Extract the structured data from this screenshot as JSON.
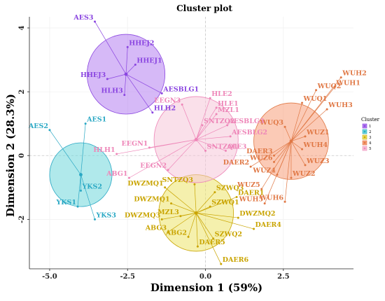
{
  "chart_data": {
    "type": "scatter",
    "title": "Cluster plot",
    "xlabel": "Dimension 1 (59%)",
    "ylabel": "Dimension 2 (28.3%)",
    "xlim": [
      -5.65,
      4.75
    ],
    "ylim": [
      -3.55,
      4.35
    ],
    "x_ticks": [
      "-5.0",
      "-2.5",
      "0.0",
      "2.5"
    ],
    "x_tick_values": [
      -5.0,
      -2.5,
      0.0,
      2.5
    ],
    "y_ticks": [
      "-2",
      "0",
      "2",
      "4"
    ],
    "y_tick_values": [
      -2,
      0,
      2,
      4
    ],
    "grid": true,
    "legend": {
      "title": "Cluster",
      "placement": "right",
      "entries": [
        "1",
        "2",
        "3",
        "4",
        "5"
      ]
    },
    "clusters": [
      {
        "name": "1",
        "color": "#8a45e0",
        "fill": "#b57ff0",
        "center": [
          -2.55,
          2.55
        ],
        "radius": 1.25,
        "points": [
          {
            "label": "AES3",
            "x": -3.55,
            "y": 4.2
          },
          {
            "label": "HHEJ2",
            "x": -2.5,
            "y": 3.4
          },
          {
            "label": "HHEJ1",
            "x": -2.25,
            "y": 2.85
          },
          {
            "label": "HHEJ3",
            "x": -3.15,
            "y": 2.4
          },
          {
            "label": "HLH3",
            "x": -2.6,
            "y": 1.9
          },
          {
            "label": "HLH2",
            "x": -1.7,
            "y": 1.35
          },
          {
            "label": "AESBLG1",
            "x": -1.4,
            "y": 1.95
          }
        ]
      },
      {
        "name": "2",
        "color": "#2aa8c4",
        "fill": "#6fd7da",
        "center": [
          -4.0,
          -0.6
        ],
        "radius": 1.0,
        "points": [
          {
            "label": "AES2",
            "x": -5.0,
            "y": 0.8
          },
          {
            "label": "AES1",
            "x": -3.85,
            "y": 1.0
          },
          {
            "label": "YKS2",
            "x": -4.0,
            "y": -1.1
          },
          {
            "label": "YKS1",
            "x": -4.1,
            "y": -1.6
          },
          {
            "label": "YKS3",
            "x": -3.55,
            "y": -2.0
          }
        ]
      },
      {
        "name": "3",
        "color": "#c9a400",
        "fill": "#ece36a",
        "center": [
          -0.3,
          -1.8
        ],
        "radius": 1.2,
        "points": [
          {
            "label": "SNTZQ3",
            "x": -0.35,
            "y": -0.9
          },
          {
            "label": "DWZMQ1",
            "x": -1.3,
            "y": -1.0
          },
          {
            "label": "SZWQ3",
            "x": 0.3,
            "y": -1.15
          },
          {
            "label": "DAER1",
            "x": 1.0,
            "y": -1.3
          },
          {
            "label": "DWZMQ1",
            "x": -1.1,
            "y": -1.5
          },
          {
            "label": "SZWQ1",
            "x": 0.15,
            "y": -1.6
          },
          {
            "label": "MZL3",
            "x": -0.8,
            "y": -1.9
          },
          {
            "label": "DWZMQ2",
            "x": 1.05,
            "y": -1.95
          },
          {
            "label": "DWZMQ3",
            "x": -1.4,
            "y": -2.0
          },
          {
            "label": "DAER4",
            "x": 1.55,
            "y": -2.3
          },
          {
            "label": "ABG3",
            "x": -1.2,
            "y": -2.4
          },
          {
            "label": "ABG2",
            "x": -0.55,
            "y": -2.55
          },
          {
            "label": "SZWQ2",
            "x": 0.25,
            "y": -2.6
          },
          {
            "label": "DAER5",
            "x": -0.25,
            "y": -2.85
          },
          {
            "label": "DAER6",
            "x": 0.5,
            "y": -3.4
          }
        ]
      },
      {
        "name": "4",
        "color": "#e07845",
        "fill": "#f79f7a",
        "center": [
          2.75,
          0.45
        ],
        "radius": 1.2,
        "points": [
          {
            "label": "WUH2",
            "x": 4.35,
            "y": 2.45
          },
          {
            "label": "WUH1",
            "x": 4.15,
            "y": 2.15
          },
          {
            "label": "WUQ2",
            "x": 3.55,
            "y": 2.05
          },
          {
            "label": "WUQ1",
            "x": 3.1,
            "y": 1.65
          },
          {
            "label": "WUH3",
            "x": 3.9,
            "y": 1.45
          },
          {
            "label": "WUQ3",
            "x": 2.55,
            "y": 0.9
          },
          {
            "label": "WUZ1",
            "x": 3.2,
            "y": 0.6
          },
          {
            "label": "WUH4",
            "x": 3.1,
            "y": 0.2
          },
          {
            "label": "DAER3",
            "x": 2.2,
            "y": 0.0
          },
          {
            "label": "WUZ6",
            "x": 2.2,
            "y": -0.2
          },
          {
            "label": "DAER2",
            "x": 1.45,
            "y": -0.35
          },
          {
            "label": "WUZ4",
            "x": 2.3,
            "y": -0.6
          },
          {
            "label": "WUZ3",
            "x": 3.2,
            "y": -0.3
          },
          {
            "label": "WUZ2",
            "x": 2.75,
            "y": -0.7
          },
          {
            "label": "WUZ5",
            "x": 1.8,
            "y": -1.05
          },
          {
            "label": "WUH5",
            "x": 1.9,
            "y": -1.5
          },
          {
            "label": "WUH6",
            "x": 2.55,
            "y": -1.45
          }
        ]
      },
      {
        "name": "5",
        "color": "#ee86b8",
        "fill": "#f6c7d9",
        "center": [
          -0.3,
          0.5
        ],
        "radius": 1.35,
        "points": [
          {
            "label": "HLE2",
            "x": 0.15,
            "y": 1.8
          },
          {
            "label": "EEGN3",
            "x": -0.75,
            "y": 1.6
          },
          {
            "label": "HLE1",
            "x": 0.35,
            "y": 1.5
          },
          {
            "label": "MZL1",
            "x": 0.35,
            "y": 1.3
          },
          {
            "label": "SNTZQ2",
            "x": -0.1,
            "y": 0.95
          },
          {
            "label": "AESBLG3",
            "x": 0.7,
            "y": 0.95
          },
          {
            "label": "AESBLG2",
            "x": 0.8,
            "y": 0.6
          },
          {
            "label": "ALE3",
            "x": 0.65,
            "y": 0.15
          },
          {
            "label": "SNTZQ1",
            "x": 0.0,
            "y": 0.15
          },
          {
            "label": "EEGN1",
            "x": -1.8,
            "y": 0.25
          },
          {
            "label": "HLH1",
            "x": -2.85,
            "y": 0.05
          },
          {
            "label": "EEGN2",
            "x": -1.2,
            "y": -0.45
          },
          {
            "label": "ABG1",
            "x": -2.45,
            "y": -0.7
          }
        ]
      }
    ]
  }
}
